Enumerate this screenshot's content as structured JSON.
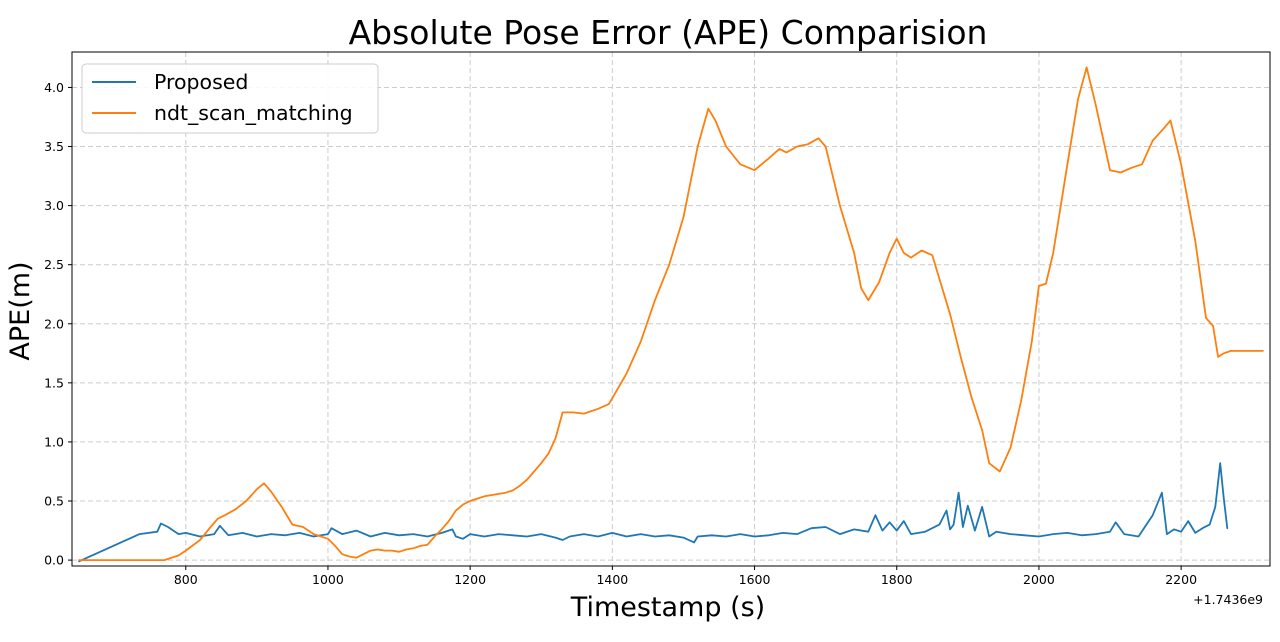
{
  "chart_data": {
    "type": "line",
    "title": "Absolute Pose Error (APE) Comparision",
    "xlabel": "Timestamp (s)",
    "ylabel": "APE(m)",
    "x_offset_label": "+1.7436e9",
    "xlim": [
      640,
      2325
    ],
    "ylim": [
      -0.05,
      4.3
    ],
    "xticks": [
      800,
      1000,
      1200,
      1400,
      1600,
      1800,
      2000,
      2200
    ],
    "yticks": [
      0.0,
      0.5,
      1.0,
      1.5,
      2.0,
      2.5,
      3.0,
      3.5,
      4.0
    ],
    "ytick_labels": [
      "0.0",
      "0.5",
      "1.0",
      "1.5",
      "2.0",
      "2.5",
      "3.0",
      "3.5",
      "4.0"
    ],
    "grid": true,
    "legend_position": "upper-left",
    "series": [
      {
        "name": "Proposed",
        "color": "#1f77b4",
        "x": [
          650,
          735,
          760,
          765,
          775,
          790,
          800,
          820,
          840,
          848,
          860,
          880,
          900,
          920,
          940,
          960,
          980,
          1000,
          1005,
          1020,
          1040,
          1060,
          1080,
          1100,
          1120,
          1140,
          1160,
          1175,
          1180,
          1190,
          1200,
          1220,
          1240,
          1260,
          1280,
          1300,
          1320,
          1330,
          1340,
          1360,
          1380,
          1400,
          1420,
          1440,
          1460,
          1480,
          1500,
          1515,
          1520,
          1540,
          1560,
          1580,
          1600,
          1620,
          1640,
          1660,
          1680,
          1700,
          1720,
          1740,
          1760,
          1770,
          1780,
          1790,
          1800,
          1810,
          1820,
          1840,
          1860,
          1870,
          1875,
          1880,
          1887,
          1893,
          1900,
          1910,
          1920,
          1930,
          1940,
          1960,
          1980,
          2000,
          2020,
          2040,
          2060,
          2080,
          2100,
          2108,
          2120,
          2140,
          2160,
          2173,
          2180,
          2190,
          2200,
          2210,
          2220,
          2230,
          2240,
          2248,
          2255,
          2260,
          2265
        ],
        "y": [
          -0.01,
          0.22,
          0.24,
          0.31,
          0.28,
          0.22,
          0.23,
          0.2,
          0.22,
          0.29,
          0.21,
          0.23,
          0.2,
          0.22,
          0.21,
          0.23,
          0.2,
          0.22,
          0.27,
          0.22,
          0.25,
          0.2,
          0.23,
          0.21,
          0.22,
          0.2,
          0.23,
          0.26,
          0.2,
          0.18,
          0.22,
          0.2,
          0.22,
          0.21,
          0.2,
          0.22,
          0.19,
          0.17,
          0.2,
          0.22,
          0.2,
          0.23,
          0.2,
          0.22,
          0.2,
          0.21,
          0.19,
          0.15,
          0.2,
          0.21,
          0.2,
          0.22,
          0.2,
          0.21,
          0.23,
          0.22,
          0.27,
          0.28,
          0.22,
          0.26,
          0.24,
          0.38,
          0.25,
          0.32,
          0.25,
          0.33,
          0.22,
          0.24,
          0.3,
          0.42,
          0.26,
          0.3,
          0.57,
          0.28,
          0.46,
          0.25,
          0.45,
          0.2,
          0.24,
          0.22,
          0.21,
          0.2,
          0.22,
          0.23,
          0.21,
          0.22,
          0.24,
          0.32,
          0.22,
          0.2,
          0.38,
          0.57,
          0.22,
          0.26,
          0.24,
          0.33,
          0.23,
          0.27,
          0.3,
          0.45,
          0.82,
          0.52,
          0.27
        ]
      },
      {
        "name": "ndt_scan_matching",
        "color": "#ff7f0e",
        "x": [
          650,
          700,
          750,
          770,
          790,
          800,
          820,
          835,
          845,
          855,
          870,
          885,
          900,
          910,
          920,
          935,
          950,
          965,
          980,
          1000,
          1010,
          1020,
          1030,
          1040,
          1050,
          1060,
          1070,
          1080,
          1090,
          1100,
          1110,
          1120,
          1130,
          1140,
          1150,
          1160,
          1170,
          1180,
          1190,
          1200,
          1210,
          1220,
          1230,
          1240,
          1250,
          1260,
          1270,
          1280,
          1290,
          1300,
          1310,
          1320,
          1330,
          1345,
          1360,
          1380,
          1395,
          1400,
          1420,
          1440,
          1460,
          1480,
          1500,
          1520,
          1535,
          1545,
          1560,
          1580,
          1600,
          1610,
          1620,
          1635,
          1645,
          1660,
          1675,
          1690,
          1700,
          1720,
          1740,
          1750,
          1760,
          1775,
          1790,
          1800,
          1810,
          1820,
          1835,
          1850,
          1860,
          1875,
          1890,
          1905,
          1920,
          1930,
          1945,
          1960,
          1975,
          1990,
          2000,
          2010,
          2020,
          2040,
          2055,
          2067,
          2080,
          2100,
          2115,
          2130,
          2145,
          2160,
          2175,
          2185,
          2200,
          2220,
          2235,
          2245,
          2252,
          2260,
          2270,
          2290,
          2315
        ],
        "y": [
          0.0,
          0.0,
          0.0,
          0.0,
          0.04,
          0.08,
          0.17,
          0.28,
          0.35,
          0.38,
          0.43,
          0.5,
          0.6,
          0.65,
          0.58,
          0.45,
          0.3,
          0.28,
          0.22,
          0.18,
          0.12,
          0.05,
          0.03,
          0.02,
          0.05,
          0.08,
          0.09,
          0.08,
          0.08,
          0.07,
          0.09,
          0.1,
          0.12,
          0.13,
          0.2,
          0.26,
          0.33,
          0.42,
          0.47,
          0.5,
          0.52,
          0.54,
          0.55,
          0.56,
          0.57,
          0.59,
          0.63,
          0.68,
          0.75,
          0.82,
          0.9,
          1.03,
          1.25,
          1.25,
          1.24,
          1.28,
          1.32,
          1.37,
          1.58,
          1.85,
          2.2,
          2.5,
          2.9,
          3.5,
          3.82,
          3.72,
          3.5,
          3.35,
          3.3,
          3.35,
          3.4,
          3.48,
          3.45,
          3.5,
          3.52,
          3.57,
          3.5,
          3.0,
          2.6,
          2.3,
          2.2,
          2.35,
          2.6,
          2.72,
          2.6,
          2.56,
          2.62,
          2.58,
          2.38,
          2.08,
          1.72,
          1.38,
          1.1,
          0.82,
          0.75,
          0.95,
          1.35,
          1.85,
          2.32,
          2.34,
          2.6,
          3.35,
          3.9,
          4.17,
          3.85,
          3.3,
          3.28,
          3.32,
          3.35,
          3.55,
          3.65,
          3.72,
          3.35,
          2.7,
          2.05,
          1.98,
          1.72,
          1.75,
          1.77,
          1.77,
          1.77
        ]
      }
    ]
  }
}
